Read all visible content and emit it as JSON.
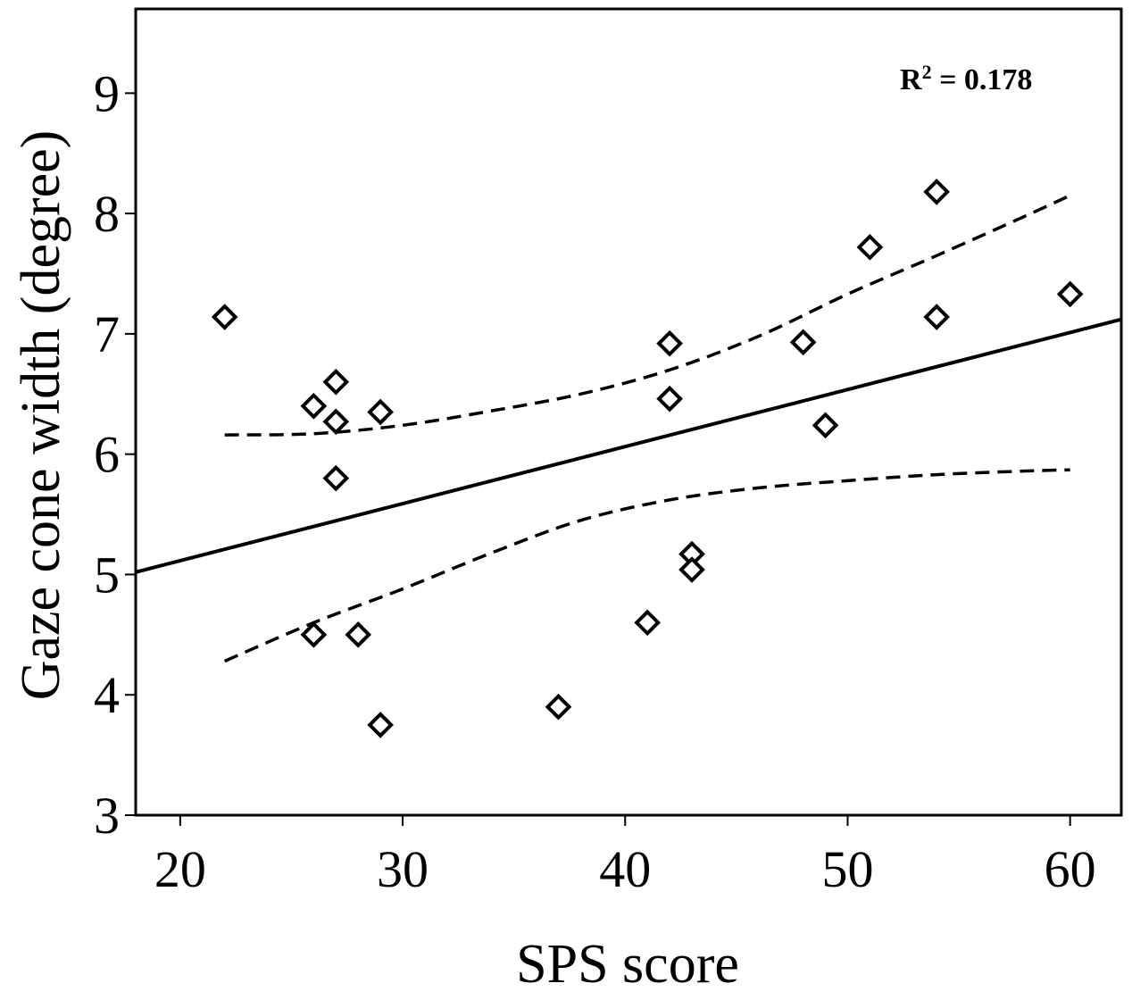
{
  "chart_data": {
    "type": "scatter",
    "title": "",
    "xlabel": "SPS score",
    "ylabel": "Gaze cone width (degree)",
    "xlim": [
      18,
      62.3
    ],
    "ylim": [
      3,
      9.7
    ],
    "x_ticks": [
      20,
      30,
      40,
      50,
      60
    ],
    "y_ticks": [
      3,
      4,
      5,
      6,
      7,
      8,
      9
    ],
    "grid": false,
    "marker": "open-diamond",
    "annotation": {
      "text_main": "R",
      "text_sup": "2",
      "text_rest": " = 0.178"
    },
    "points": [
      {
        "x": 22,
        "y": 7.14
      },
      {
        "x": 26,
        "y": 6.4
      },
      {
        "x": 27,
        "y": 6.6
      },
      {
        "x": 27,
        "y": 6.27
      },
      {
        "x": 27,
        "y": 5.8
      },
      {
        "x": 29,
        "y": 6.35
      },
      {
        "x": 26,
        "y": 4.5
      },
      {
        "x": 28,
        "y": 4.5
      },
      {
        "x": 29,
        "y": 3.75
      },
      {
        "x": 37,
        "y": 3.9
      },
      {
        "x": 41,
        "y": 4.6
      },
      {
        "x": 42,
        "y": 6.92
      },
      {
        "x": 42,
        "y": 6.46
      },
      {
        "x": 43,
        "y": 5.17
      },
      {
        "x": 43,
        "y": 5.04
      },
      {
        "x": 48,
        "y": 6.93
      },
      {
        "x": 49,
        "y": 6.24
      },
      {
        "x": 51,
        "y": 7.72
      },
      {
        "x": 54,
        "y": 8.18
      },
      {
        "x": 54,
        "y": 7.14
      },
      {
        "x": 60,
        "y": 7.33
      }
    ],
    "regression_line": {
      "x": [
        18,
        62.3
      ],
      "y": [
        5.02,
        7.12
      ]
    },
    "confidence_upper": {
      "x": [
        22,
        26,
        30,
        34,
        38,
        42,
        46,
        50,
        54,
        58,
        60
      ],
      "y": [
        6.16,
        6.17,
        6.24,
        6.36,
        6.5,
        6.7,
        6.98,
        7.33,
        7.65,
        7.98,
        8.15
      ]
    },
    "confidence_lower": {
      "x": [
        22,
        26,
        30,
        34,
        38,
        42,
        46,
        50,
        54,
        58,
        60
      ],
      "y": [
        4.28,
        4.6,
        4.88,
        5.18,
        5.45,
        5.62,
        5.72,
        5.78,
        5.83,
        5.86,
        5.87
      ]
    }
  }
}
